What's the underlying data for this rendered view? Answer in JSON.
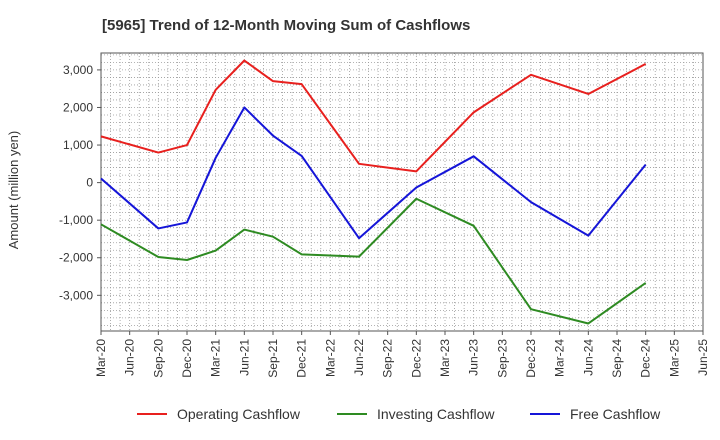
{
  "chart_data": {
    "type": "line",
    "title": "[5965]  Trend of 12-Month Moving Sum of Cashflows",
    "xlabel": "",
    "ylabel": "Amount (million yen)",
    "categories": [
      "Mar-20",
      "Jun-20",
      "Sep-20",
      "Dec-20",
      "Mar-21",
      "Jun-21",
      "Sep-21",
      "Dec-21",
      "Mar-22",
      "Jun-22",
      "Sep-22",
      "Dec-22",
      "Mar-23",
      "Jun-23",
      "Sep-23",
      "Dec-23",
      "Mar-24",
      "Jun-24",
      "Sep-24",
      "Dec-24",
      "Mar-25",
      "Jun-25"
    ],
    "ylim": [
      -3950,
      3450
    ],
    "yticks": [
      -3000,
      -2000,
      -1000,
      0,
      1000,
      2000,
      3000
    ],
    "ytick_labels": [
      "-3,000",
      "-2,000",
      "-1,000",
      "0",
      "1,000",
      "2,000",
      "3,000"
    ],
    "grid": true,
    "legend_position": "bottom",
    "series": [
      {
        "name": "Operating Cashflow",
        "color": "#e8201e",
        "values": [
          1230,
          null,
          800,
          1000,
          2470,
          3250,
          2700,
          2620,
          null,
          500,
          null,
          300,
          null,
          1870,
          null,
          2870,
          null,
          2360,
          null,
          3160,
          null,
          null
        ]
      },
      {
        "name": "Investing Cashflow",
        "color": "#2e8b22",
        "values": [
          -1110,
          null,
          -1980,
          -2060,
          -1810,
          -1250,
          -1440,
          -1910,
          null,
          -1970,
          null,
          -430,
          null,
          -1150,
          null,
          -3370,
          null,
          -3750,
          null,
          -2670,
          null,
          null
        ]
      },
      {
        "name": "Free Cashflow",
        "color": "#1515d8",
        "values": [
          110,
          null,
          -1220,
          -1060,
          660,
          2000,
          1250,
          710,
          null,
          -1480,
          null,
          -130,
          null,
          700,
          null,
          -520,
          null,
          -1410,
          null,
          480,
          null,
          null
        ]
      }
    ]
  }
}
